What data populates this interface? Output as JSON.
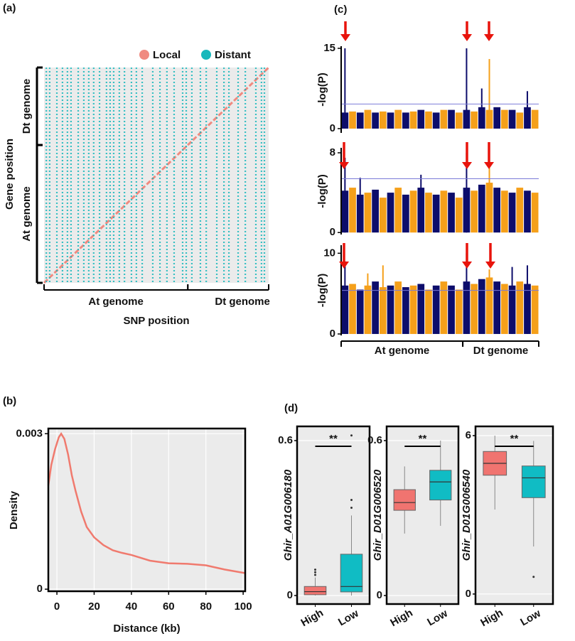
{
  "chart_data": [
    {
      "type": "scatter",
      "label": "(a)",
      "xlabel": "SNP position",
      "ylabel": "Gene position",
      "xlim": [
        0,
        100
      ],
      "ylim": [
        0,
        100
      ],
      "groups": [
        {
          "name": "At genome",
          "range": [
            0,
            64
          ]
        },
        {
          "name": "Dt genome",
          "range": [
            64,
            100
          ]
        }
      ],
      "series": [
        {
          "name": "Local",
          "color": "#f08a80",
          "x": [
            0,
            10,
            20,
            30,
            40,
            50,
            60,
            70,
            80,
            90,
            100
          ],
          "y": [
            0,
            10,
            20,
            30,
            40,
            50,
            60,
            70,
            80,
            90,
            100
          ]
        },
        {
          "name": "Distant",
          "color": "#17b8bc",
          "x": [
            1,
            2.5,
            5.7,
            8.2,
            10.4,
            12,
            15.2,
            17.7,
            19.9,
            22.1,
            24.7,
            27.8,
            29.4,
            31,
            33.5,
            35.8,
            38.9,
            41.1,
            43.7,
            48.4,
            51.6,
            54.7,
            57.9,
            61.7,
            63.3,
            65.8,
            69.6,
            72.2,
            76.9,
            80.1,
            82.3,
            86.4,
            89.6,
            94.3,
            96.8,
            98.1
          ]
        }
      ]
    },
    {
      "type": "line",
      "label": "(b)",
      "xlabel": "Distance (kb)",
      "ylabel": "Density",
      "xlim": [
        -4.6,
        101.1
      ],
      "ylim": [
        -4e-05,
        0.0031
      ],
      "xticks": [
        0,
        20,
        40,
        60,
        80,
        100
      ],
      "yticks": [
        0,
        0.003
      ],
      "grid": true,
      "color": "#f07a6e",
      "x": [
        -4.6,
        -3,
        -1,
        1,
        2.3,
        4,
        6,
        8,
        10,
        13,
        16,
        20,
        25,
        30,
        35,
        40,
        50,
        60,
        70,
        80,
        90,
        101.1
      ],
      "values": [
        0.002,
        0.0024,
        0.0027,
        0.00293,
        0.003,
        0.0029,
        0.0026,
        0.0022,
        0.0019,
        0.0015,
        0.0012,
        0.001,
        0.00085,
        0.00075,
        0.0007,
        0.00066,
        0.00055,
        0.0005,
        0.00049,
        0.00046,
        0.00038,
        0.00031
      ]
    },
    {
      "type": "manhattan",
      "label": "(c)",
      "ylabel": "-log(P)",
      "xlim": [
        0,
        26
      ],
      "ylim": [
        -0.8,
        15.4
      ],
      "yticks": [
        0,
        15
      ],
      "colors": [
        "#0d0d6b",
        "#f5a01a"
      ],
      "threshold": 4.6,
      "values": [
        3,
        3.2,
        3,
        3.5,
        3,
        3.2,
        3,
        3.5,
        3,
        3.2,
        3.5,
        3.2,
        3,
        3.5,
        3.5,
        3,
        3.5,
        3.2,
        4,
        3.5,
        4,
        3.5,
        3.5,
        3,
        4,
        3.5
      ],
      "spikes": [
        {
          "chromosome": 0,
          "value": 15
        },
        {
          "chromosome": 16,
          "value": 15
        },
        {
          "chromosome": 18,
          "value": 7.5
        },
        {
          "chromosome": 19,
          "value": 13
        },
        {
          "chromosome": 24,
          "value": 7
        }
      ]
    },
    {
      "type": "manhattan",
      "ylabel": "-log(P)",
      "xlim": [
        0,
        26
      ],
      "ylim": [
        -0.2,
        8.5
      ],
      "yticks": [
        0,
        8
      ],
      "colors": [
        "#0d0d6b",
        "#f5a01a"
      ],
      "threshold": 5.4,
      "values": [
        4.2,
        4.5,
        3.8,
        4,
        4.3,
        3.5,
        4,
        4.5,
        3.8,
        4.2,
        4.5,
        4,
        3.8,
        4.2,
        4,
        3.5,
        4.5,
        4.2,
        4.8,
        5,
        4.5,
        4.2,
        4,
        4.5,
        4.2,
        4
      ],
      "spikes": [
        {
          "chromosome": 0,
          "value": 7.5
        },
        {
          "chromosome": 2,
          "value": 5.5
        },
        {
          "chromosome": 10,
          "value": 5.8
        },
        {
          "chromosome": 16,
          "value": 8
        },
        {
          "chromosome": 19,
          "value": 7
        }
      ]
    },
    {
      "type": "manhattan",
      "ylabel": "-log(P)",
      "xlim": [
        0,
        26
      ],
      "ylim": [
        -0.18,
        11
      ],
      "yticks": [
        0,
        10
      ],
      "colors": [
        "#0d0d6b",
        "#f5a01a"
      ],
      "threshold": 5.4,
      "values": [
        6,
        6.2,
        5.5,
        6,
        6.5,
        5.8,
        6,
        6.5,
        5.8,
        6,
        6.2,
        5.5,
        6,
        6.5,
        6,
        5.5,
        6.5,
        6.2,
        6.8,
        7,
        6.5,
        6.2,
        6,
        6.5,
        6.2,
        6
      ],
      "spikes": [
        {
          "chromosome": 0,
          "value": 9
        },
        {
          "chromosome": 3,
          "value": 7.5
        },
        {
          "chromosome": 5,
          "value": 8.5
        },
        {
          "chromosome": 16,
          "value": 10
        },
        {
          "chromosome": 19,
          "value": 8
        },
        {
          "chromosome": 22,
          "value": 8.3
        },
        {
          "chromosome": 24,
          "value": 8.5
        }
      ],
      "groups": [
        {
          "name": "At genome",
          "range": [
            0,
            16
          ]
        },
        {
          "name": "Dt genome",
          "range": [
            16,
            26
          ]
        }
      ]
    },
    {
      "type": "box",
      "label": "(d)",
      "ylabel": "Ghir_A01G006180",
      "categories": [
        "High",
        "Low"
      ],
      "colors": [
        "#f07470",
        "#10bcc4"
      ],
      "ylim": [
        -0.033,
        0.655
      ],
      "yticks": [
        0,
        0.6
      ],
      "significance": "**",
      "boxes": [
        {
          "whisker_low": 0,
          "q1": 0.003,
          "median": 0.015,
          "q3": 0.035,
          "whisker_high": 0.07,
          "outliers": [
            0.08,
            0.09,
            0.1
          ]
        },
        {
          "whisker_low": 0,
          "q1": 0.014,
          "median": 0.035,
          "q3": 0.16,
          "whisker_high": 0.31,
          "outliers": [
            0.34,
            0.37,
            0.62
          ]
        }
      ]
    },
    {
      "type": "box",
      "ylabel": "Ghir_D01G006520",
      "categories": [
        "High",
        "Low"
      ],
      "colors": [
        "#f07470",
        "#10bcc4"
      ],
      "ylim": [
        -0.033,
        0.655
      ],
      "yticks": [
        0,
        0.6
      ],
      "significance": "**",
      "boxes": [
        {
          "whisker_low": 0.24,
          "q1": 0.33,
          "median": 0.36,
          "q3": 0.41,
          "whisker_high": 0.5,
          "outliers": []
        },
        {
          "whisker_low": 0.27,
          "q1": 0.37,
          "median": 0.44,
          "q3": 0.485,
          "whisker_high": 0.6,
          "outliers": []
        }
      ]
    },
    {
      "type": "box",
      "ylabel": "Ghir_D01G006540",
      "categories": [
        "High",
        "Low"
      ],
      "colors": [
        "#f07470",
        "#10bcc4"
      ],
      "ylim": [
        -0.38,
        6.35
      ],
      "yticks": [
        0,
        6
      ],
      "significance": "**",
      "boxes": [
        {
          "whisker_low": 3.2,
          "q1": 4.5,
          "median": 4.95,
          "q3": 5.4,
          "whisker_high": 6,
          "outliers": []
        },
        {
          "whisker_low": 1.8,
          "q1": 3.65,
          "median": 4.4,
          "q3": 4.85,
          "whisker_high": 5.8,
          "outliers": [
            0.65
          ]
        }
      ]
    }
  ]
}
